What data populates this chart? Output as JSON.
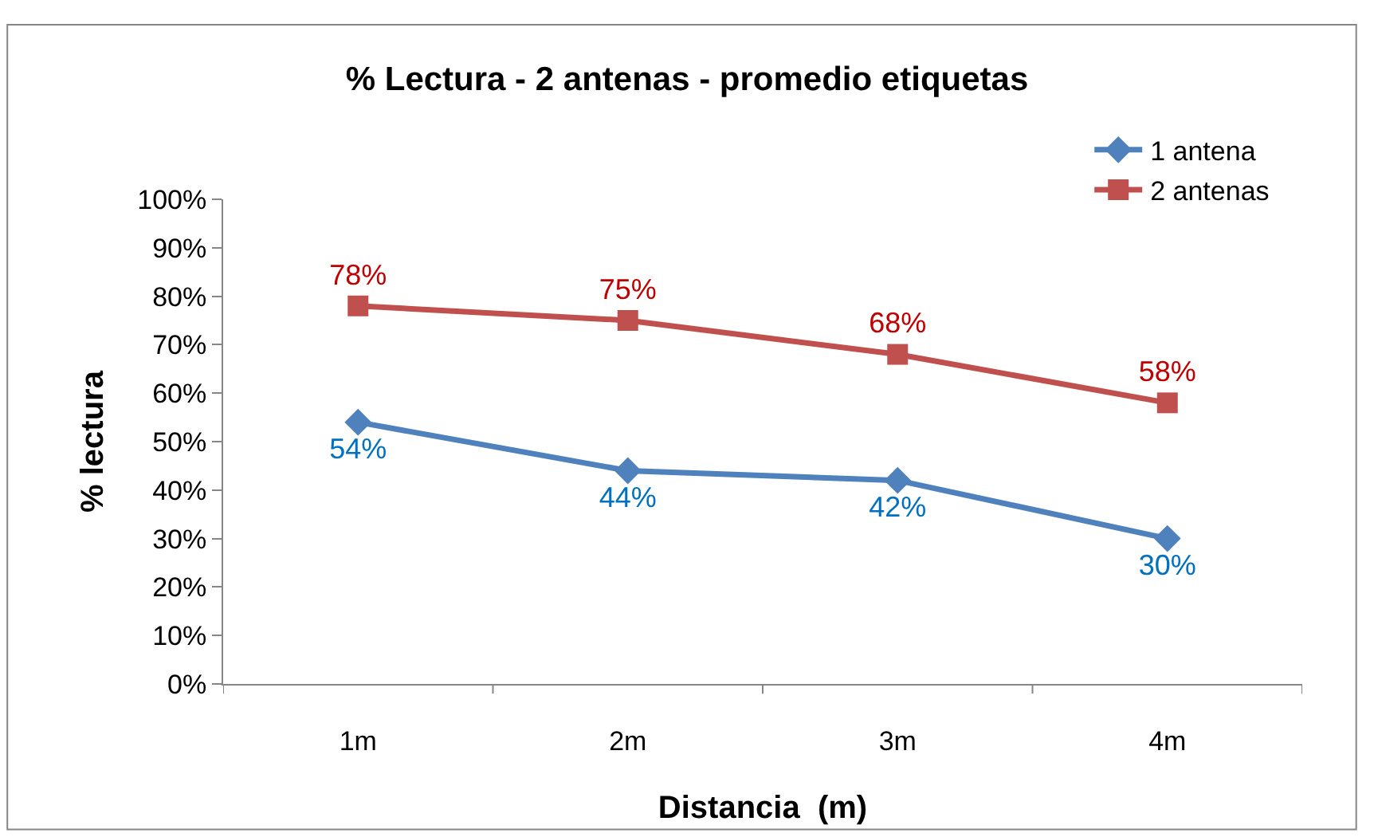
{
  "chart_data": {
    "type": "line",
    "title": "% Lectura - 2 antenas - promedio etiquetas",
    "xlabel": "Distancia  (m)",
    "ylabel": "% lectura",
    "categories": [
      "1m",
      "2m",
      "3m",
      "4m"
    ],
    "series": [
      {
        "name": "1 antena",
        "color": "#4f81bd",
        "marker": "diamond",
        "values": [
          54,
          44,
          42,
          30
        ],
        "value_labels": [
          "54%",
          "44%",
          "42%",
          "30%"
        ]
      },
      {
        "name": "2 antenas",
        "color": "#c0504d",
        "marker": "square",
        "values": [
          78,
          75,
          68,
          58
        ],
        "value_labels": [
          "78%",
          "75%",
          "68%",
          "58%"
        ]
      }
    ],
    "ylim": [
      0,
      100
    ],
    "yticks": [
      {
        "value": 0,
        "label": "0%"
      },
      {
        "value": 10,
        "label": "10%"
      },
      {
        "value": 20,
        "label": "20%"
      },
      {
        "value": 30,
        "label": "30%"
      },
      {
        "value": 40,
        "label": "40%"
      },
      {
        "value": 50,
        "label": "50%"
      },
      {
        "value": 60,
        "label": "60%"
      },
      {
        "value": 70,
        "label": "70%"
      },
      {
        "value": 80,
        "label": "80%"
      },
      {
        "value": 90,
        "label": "90%"
      },
      {
        "value": 100,
        "label": "100%"
      }
    ],
    "legend": "top right",
    "line_style": "solid"
  }
}
